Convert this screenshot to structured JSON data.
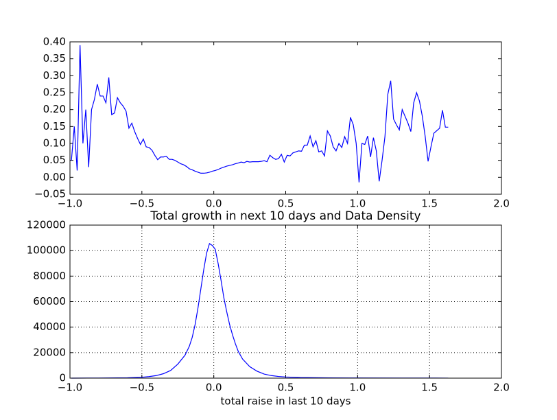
{
  "chart_data": [
    {
      "type": "line",
      "x": [
        -0.99,
        -0.97,
        -0.95,
        -0.93,
        -0.91,
        -0.89,
        -0.87,
        -0.85,
        -0.83,
        -0.81,
        -0.79,
        -0.77,
        -0.75,
        -0.73,
        -0.71,
        -0.69,
        -0.67,
        -0.65,
        -0.63,
        -0.61,
        -0.59,
        -0.57,
        -0.55,
        -0.53,
        -0.51,
        -0.49,
        -0.47,
        -0.45,
        -0.43,
        -0.41,
        -0.39,
        -0.37,
        -0.35,
        -0.33,
        -0.31,
        -0.29,
        -0.27,
        -0.25,
        -0.23,
        -0.21,
        -0.19,
        -0.17,
        -0.15,
        -0.13,
        -0.11,
        -0.09,
        -0.07,
        -0.05,
        -0.03,
        -0.01,
        0.01,
        0.03,
        0.05,
        0.07,
        0.09,
        0.11,
        0.13,
        0.15,
        0.17,
        0.19,
        0.21,
        0.23,
        0.25,
        0.27,
        0.29,
        0.31,
        0.33,
        0.35,
        0.37,
        0.39,
        0.41,
        0.43,
        0.45,
        0.47,
        0.49,
        0.51,
        0.53,
        0.55,
        0.57,
        0.59,
        0.61,
        0.63,
        0.65,
        0.67,
        0.69,
        0.71,
        0.73,
        0.75,
        0.77,
        0.79,
        0.81,
        0.83,
        0.85,
        0.87,
        0.89,
        0.91,
        0.93,
        0.95,
        0.97,
        0.99,
        1.01,
        1.03,
        1.05,
        1.07,
        1.09,
        1.11,
        1.13,
        1.15,
        1.17,
        1.19,
        1.21,
        1.23,
        1.25,
        1.27,
        1.29,
        1.31,
        1.33,
        1.35,
        1.37,
        1.39,
        1.41,
        1.43,
        1.45,
        1.47,
        1.49,
        1.51,
        1.53,
        1.57,
        1.59,
        1.61,
        1.63
      ],
      "series": [
        {
          "color": "#0000ff",
          "values": [
            0.05,
            0.15,
            0.02,
            0.39,
            0.1,
            0.2,
            0.03,
            0.2,
            0.23,
            0.275,
            0.24,
            0.24,
            0.22,
            0.295,
            0.185,
            0.19,
            0.235,
            0.22,
            0.21,
            0.195,
            0.145,
            0.16,
            0.135,
            0.115,
            0.097,
            0.113,
            0.09,
            0.088,
            0.08,
            0.065,
            0.052,
            0.06,
            0.06,
            0.062,
            0.053,
            0.053,
            0.05,
            0.045,
            0.04,
            0.037,
            0.032,
            0.025,
            0.022,
            0.018,
            0.015,
            0.012,
            0.012,
            0.013,
            0.015,
            0.018,
            0.02,
            0.023,
            0.027,
            0.03,
            0.033,
            0.035,
            0.037,
            0.04,
            0.042,
            0.045,
            0.043,
            0.047,
            0.045,
            0.046,
            0.046,
            0.046,
            0.047,
            0.049,
            0.046,
            0.065,
            0.058,
            0.053,
            0.055,
            0.068,
            0.045,
            0.065,
            0.063,
            0.072,
            0.075,
            0.078,
            0.077,
            0.095,
            0.095,
            0.122,
            0.09,
            0.108,
            0.075,
            0.078,
            0.063,
            0.137,
            0.122,
            0.09,
            0.078,
            0.1,
            0.088,
            0.12,
            0.1,
            0.177,
            0.155,
            0.1,
            -0.015,
            0.1,
            0.097,
            0.122,
            0.06,
            0.117,
            0.078,
            -0.012,
            0.05,
            0.12,
            0.245,
            0.285,
            0.172,
            0.155,
            0.14,
            0.2,
            0.18,
            0.16,
            0.135,
            0.22,
            0.25,
            0.225,
            0.18,
            0.12,
            0.047,
            0.09,
            0.13,
            0.145,
            0.198,
            0.148,
            0.148
          ]
        }
      ],
      "xlim": [
        -1,
        2
      ],
      "xticks": [
        {
          "value": -1,
          "label": "−1.0"
        },
        {
          "value": -0.5,
          "label": "−0.5"
        },
        {
          "value": 0,
          "label": "0.0"
        },
        {
          "value": 0.5,
          "label": "0.5"
        },
        {
          "value": 1,
          "label": "1.0"
        },
        {
          "value": 1.5,
          "label": "1.5"
        },
        {
          "value": 2,
          "label": "2.0"
        }
      ],
      "ylim": [
        -0.05,
        0.4
      ],
      "yticks": [
        {
          "value": -0.05,
          "label": "−0.05"
        },
        {
          "value": 0,
          "label": "0.00"
        },
        {
          "value": 0.05,
          "label": "0.05"
        },
        {
          "value": 0.1,
          "label": "0.10"
        },
        {
          "value": 0.15,
          "label": "0.15"
        },
        {
          "value": 0.2,
          "label": "0.20"
        },
        {
          "value": 0.25,
          "label": "0.25"
        },
        {
          "value": 0.3,
          "label": "0.30"
        },
        {
          "value": 0.35,
          "label": "0.35"
        },
        {
          "value": 0.4,
          "label": "0.40"
        }
      ],
      "grid": false
    },
    {
      "type": "line",
      "title": "Total growth in next 10 days and Data Density",
      "x_label": "total raise in last 10 days",
      "x": [
        -0.99,
        -0.8,
        -0.6,
        -0.5,
        -0.45,
        -0.4,
        -0.35,
        -0.3,
        -0.25,
        -0.2,
        -0.17,
        -0.15,
        -0.13,
        -0.11,
        -0.09,
        -0.07,
        -0.05,
        -0.03,
        -0.01,
        0.01,
        0.03,
        0.05,
        0.07,
        0.09,
        0.11,
        0.13,
        0.15,
        0.17,
        0.2,
        0.25,
        0.3,
        0.35,
        0.4,
        0.45,
        0.5,
        0.6,
        0.8,
        1.0,
        1.3,
        1.63
      ],
      "series": [
        {
          "color": "#0000ff",
          "values": [
            0,
            100,
            300,
            700,
            1200,
            2000,
            3500,
            6000,
            11000,
            18000,
            25000,
            32000,
            42000,
            55000,
            70000,
            85000,
            98000,
            105500,
            104000,
            101000,
            90000,
            77000,
            63000,
            52000,
            42000,
            34000,
            27000,
            21000,
            15000,
            9000,
            5500,
            3200,
            2000,
            1300,
            900,
            500,
            250,
            150,
            80,
            40
          ]
        }
      ],
      "xlim": [
        -1,
        2
      ],
      "xticks": [
        {
          "value": -1,
          "label": "−1.0"
        },
        {
          "value": -0.5,
          "label": "−0.5"
        },
        {
          "value": 0,
          "label": "0.0"
        },
        {
          "value": 0.5,
          "label": "0.5"
        },
        {
          "value": 1,
          "label": "1.0"
        },
        {
          "value": 1.5,
          "label": "1.5"
        },
        {
          "value": 2,
          "label": "2.0"
        }
      ],
      "ylim": [
        0,
        120000
      ],
      "yticks": [
        0,
        20000,
        40000,
        60000,
        80000,
        100000,
        120000
      ],
      "grid": true
    }
  ]
}
